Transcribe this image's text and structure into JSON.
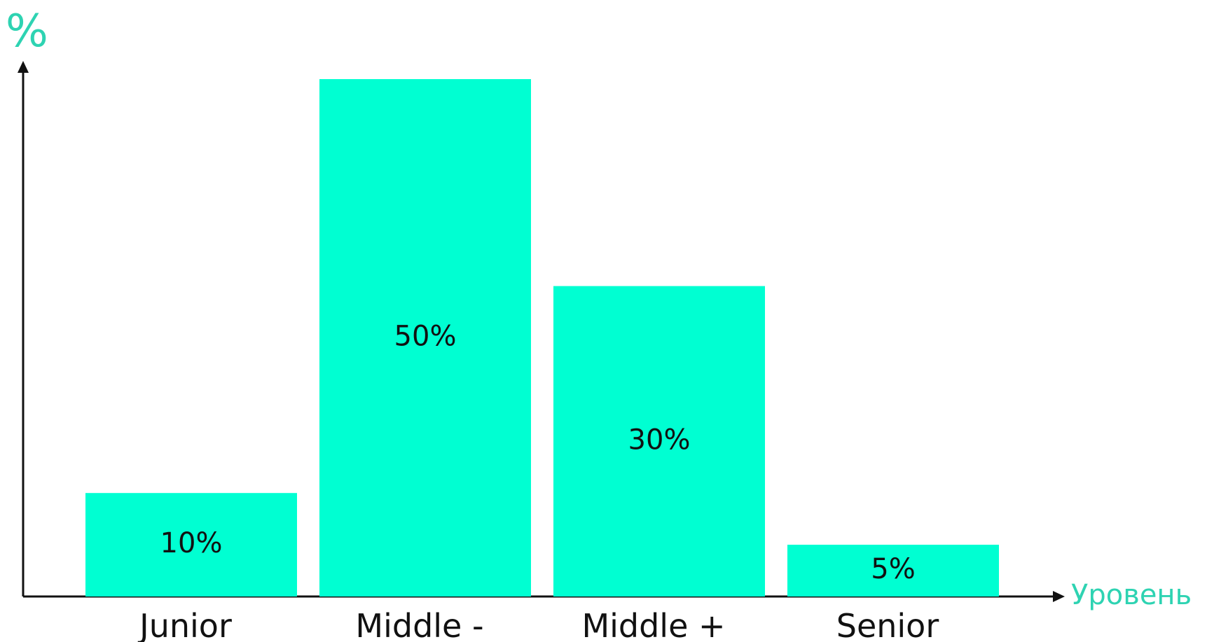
{
  "chart_data": {
    "type": "bar",
    "categories": [
      "Junior",
      "Middle -",
      "Middle +",
      "Senior"
    ],
    "values": [
      10,
      50,
      30,
      5
    ],
    "data_labels": [
      "10%",
      "50%",
      "30%",
      "5%"
    ],
    "xlabel": "Уровень",
    "ylabel": "%",
    "ylim": [
      0,
      50
    ],
    "grid": false,
    "legend": "none"
  },
  "colors": {
    "bar": "#00FFD2",
    "axis": "#111111",
    "axis_title": "#2ED3B2",
    "text": "#111111"
  }
}
